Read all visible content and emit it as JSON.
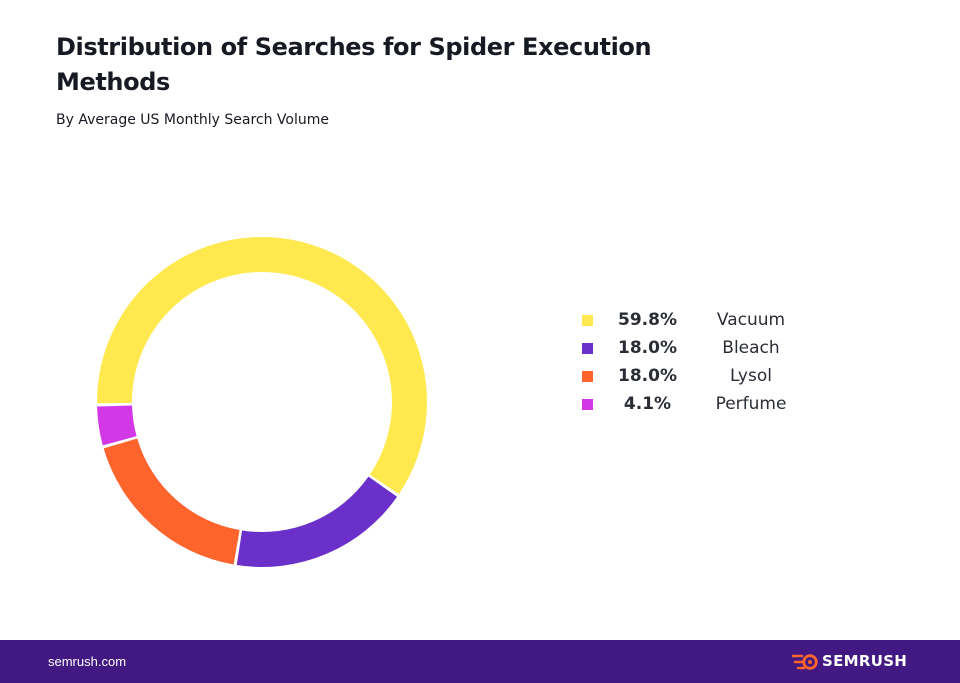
{
  "title": "Distribution of Searches for Spider Execution Methods",
  "subtitle": "By Average US Monthly Search Volume",
  "chart_data": {
    "type": "pie",
    "title": "Distribution of Searches for Spider Execution Methods",
    "subtitle": "By Average US Monthly Search Volume",
    "unit": "%",
    "categories": [
      "Vacuum",
      "Bleach",
      "Lysol",
      "Perfume"
    ],
    "values": [
      59.8,
      18.0,
      18.0,
      4.1
    ],
    "value_labels": [
      "59.8%",
      "18.0%",
      "18.0%",
      "4.1%"
    ],
    "colors": [
      "#ffe94f",
      "#6b2fca",
      "#ff642d",
      "#d238e6"
    ],
    "legend_position": "right",
    "donut": true
  },
  "footer": {
    "site": "semrush.com",
    "brand": "SEMRUSH",
    "background": "#421983",
    "icon": "semrush-flame-logo-icon"
  }
}
